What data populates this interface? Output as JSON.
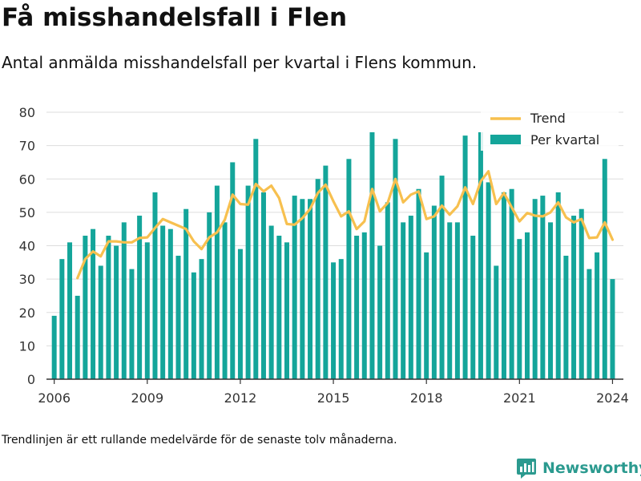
{
  "header": {
    "title": "Få misshandelsfall i Flen",
    "subtitle": "Antal anmälda misshandelsfall per kvartal i Flens kommun."
  },
  "footnote": "Trendlinjen är ett rullande medelvärde för de senaste tolv månaderna.",
  "brand": {
    "name": "Newsworthy",
    "icon": "newsworthy-logo-icon"
  },
  "colors": {
    "bar": "#14a59a",
    "trend": "#f7c04f",
    "grid": "#dddddd",
    "axis": "#333333",
    "text": "#333333"
  },
  "chart_data": {
    "type": "bar",
    "title": "Få misshandelsfall i Flen",
    "xlabel": "",
    "ylabel": "",
    "ylim": [
      0,
      80
    ],
    "yticks": [
      0,
      10,
      20,
      30,
      40,
      50,
      60,
      70,
      80
    ],
    "xlim": [
      2005.75,
      2024.35
    ],
    "xticks": [
      2006,
      2009,
      2012,
      2015,
      2018,
      2021,
      2024
    ],
    "grid": true,
    "legend_position": "top-right",
    "legend": [
      "Trend",
      "Per kvartal"
    ],
    "x": [
      2006.0,
      2006.25,
      2006.5,
      2006.75,
      2007.0,
      2007.25,
      2007.5,
      2007.75,
      2008.0,
      2008.25,
      2008.5,
      2008.75,
      2009.0,
      2009.25,
      2009.5,
      2009.75,
      2010.0,
      2010.25,
      2010.5,
      2010.75,
      2011.0,
      2011.25,
      2011.5,
      2011.75,
      2012.0,
      2012.25,
      2012.5,
      2012.75,
      2013.0,
      2013.25,
      2013.5,
      2013.75,
      2014.0,
      2014.25,
      2014.5,
      2014.75,
      2015.0,
      2015.25,
      2015.5,
      2015.75,
      2016.0,
      2016.25,
      2016.5,
      2016.75,
      2017.0,
      2017.25,
      2017.5,
      2017.75,
      2018.0,
      2018.25,
      2018.5,
      2018.75,
      2019.0,
      2019.25,
      2019.5,
      2019.75,
      2020.0,
      2020.25,
      2020.5,
      2020.75,
      2021.0,
      2021.25,
      2021.5,
      2021.75,
      2022.0,
      2022.25,
      2022.5,
      2022.75,
      2023.0,
      2023.25,
      2023.5,
      2023.75,
      2024.0
    ],
    "series": [
      {
        "name": "Per kvartal",
        "type": "bar",
        "values": [
          19,
          36,
          41,
          25,
          43,
          45,
          34,
          43,
          40,
          47,
          33,
          49,
          41,
          56,
          46,
          45,
          37,
          51,
          32,
          36,
          50,
          58,
          47,
          65,
          39,
          58,
          72,
          56,
          46,
          43,
          41,
          55,
          54,
          54,
          60,
          64,
          35,
          36,
          66,
          43,
          44,
          74,
          40,
          53,
          72,
          47,
          49,
          57,
          38,
          52,
          61,
          47,
          47,
          73,
          43,
          74,
          59,
          34,
          56,
          57,
          42,
          44,
          54,
          55,
          47,
          56,
          37,
          49,
          51,
          33,
          38,
          66,
          30
        ]
      },
      {
        "name": "Trend",
        "type": "line",
        "values": [
          null,
          null,
          null,
          30.3,
          36,
          38.3,
          36.8,
          41.3,
          41.3,
          41,
          41,
          42.3,
          42.5,
          45.3,
          48,
          47,
          46,
          45,
          41.3,
          39,
          42.5,
          44,
          47.8,
          55.3,
          52.5,
          52.3,
          58.5,
          56.3,
          58,
          54.3,
          46.5,
          46.3,
          48.3,
          51,
          55.8,
          58.3,
          53.3,
          48.8,
          50.3,
          45,
          47.3,
          57,
          50.3,
          52.8,
          60,
          53,
          55.3,
          56.3,
          48,
          48.8,
          52,
          49.3,
          51.8,
          57.5,
          52.5,
          59.3,
          62.3,
          52.5,
          55.8,
          51.5,
          47.3,
          49.8,
          49,
          48.8,
          50,
          53,
          48.5,
          47,
          48,
          42.3,
          42.5,
          47,
          41.8
        ]
      }
    ]
  }
}
